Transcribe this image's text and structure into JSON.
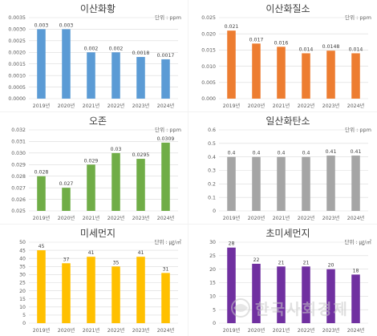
{
  "chart_data": [
    {
      "type": "bar",
      "title": "이산화황",
      "unit_label": "단위 : ppm",
      "categories": [
        "2019년",
        "2020년",
        "2021년",
        "2022년",
        "2023년",
        "2024년"
      ],
      "values": [
        0.003,
        0.003,
        0.002,
        0.002,
        0.0018,
        0.0017
      ],
      "value_labels": [
        "0.003",
        "0.003",
        "0.002",
        "0.002",
        "0.0018",
        "0.0017"
      ],
      "ylim": [
        0,
        0.0035
      ],
      "yticks": [
        "0.0000",
        "0.0005",
        "0.0010",
        "0.0015",
        "0.0020",
        "0.0025",
        "0.0030",
        "0.0035"
      ],
      "color": "#5B9BD5",
      "grid": true
    },
    {
      "type": "bar",
      "title": "이산화질소",
      "unit_label": "단위 : ppm",
      "categories": [
        "2019년",
        "2020년",
        "2021년",
        "2022년",
        "2023년",
        "2024년"
      ],
      "values": [
        0.021,
        0.017,
        0.016,
        0.014,
        0.0148,
        0.014
      ],
      "value_labels": [
        "0.021",
        "0.017",
        "0.016",
        "0.014",
        "0.0148",
        "0.014"
      ],
      "ylim": [
        0,
        0.025
      ],
      "yticks": [
        "0.000",
        "0.005",
        "0.010",
        "0.015",
        "0.020",
        "0.025"
      ],
      "color": "#ED7D31",
      "grid": true
    },
    {
      "type": "bar",
      "title": "오존",
      "unit_label": "단위 : ppm",
      "categories": [
        "2019년",
        "2020년",
        "2021년",
        "2022년",
        "2023년",
        "2024년"
      ],
      "values": [
        0.028,
        0.027,
        0.029,
        0.03,
        0.0295,
        0.0309
      ],
      "value_labels": [
        "0.028",
        "0.027",
        "0.029",
        "0.03",
        "0.0295",
        "0.0309"
      ],
      "ylim": [
        0.025,
        0.032
      ],
      "yticks": [
        "0.025",
        "0.026",
        "0.027",
        "0.028",
        "0.029",
        "0.030",
        "0.031",
        "0.032"
      ],
      "color": "#70AD47",
      "grid": true
    },
    {
      "type": "bar",
      "title": "일산화탄소",
      "unit_label": "단위 : ppm",
      "categories": [
        "2019년",
        "2020년",
        "2021년",
        "2022년",
        "2023년",
        "2024년"
      ],
      "values": [
        0.4,
        0.4,
        0.4,
        0.4,
        0.41,
        0.41
      ],
      "value_labels": [
        "0.4",
        "0.4",
        "0.4",
        "0.4",
        "0.41",
        "0.41"
      ],
      "ylim": [
        0,
        0.6
      ],
      "yticks": [
        "0",
        "0.1",
        "0.2",
        "0.3",
        "0.4",
        "0.5",
        "0.6"
      ],
      "color": "#A5A5A5",
      "grid": true
    },
    {
      "type": "bar",
      "title": "미세먼지",
      "unit_label": "단위 : ㎍/㎥",
      "categories": [
        "2019년",
        "2020년",
        "2021년",
        "2022년",
        "2023년",
        "2024년"
      ],
      "values": [
        45,
        37,
        41,
        35,
        41,
        31
      ],
      "value_labels": [
        "45",
        "37",
        "41",
        "35",
        "41",
        "31"
      ],
      "ylim": [
        0,
        50
      ],
      "yticks": [
        "0",
        "5",
        "10",
        "15",
        "20",
        "25",
        "30",
        "35",
        "40",
        "45",
        "50"
      ],
      "color": "#FFC000",
      "grid": true
    },
    {
      "type": "bar",
      "title": "초미세먼지",
      "unit_label": "단위 : ㎍/㎥",
      "categories": [
        "2019년",
        "2020년",
        "2021년",
        "2022년",
        "2023년",
        "2024년"
      ],
      "values": [
        28,
        22,
        21,
        21,
        20,
        18
      ],
      "value_labels": [
        "28",
        "22",
        "21",
        "21",
        "20",
        "18"
      ],
      "ylim": [
        0,
        30
      ],
      "yticks": [
        "0",
        "5",
        "10",
        "15",
        "20",
        "25",
        "30"
      ],
      "color": "#7030A0",
      "grid": true
    }
  ],
  "watermark": {
    "text": "한국사회경제",
    "color": "#c8c8c8"
  }
}
